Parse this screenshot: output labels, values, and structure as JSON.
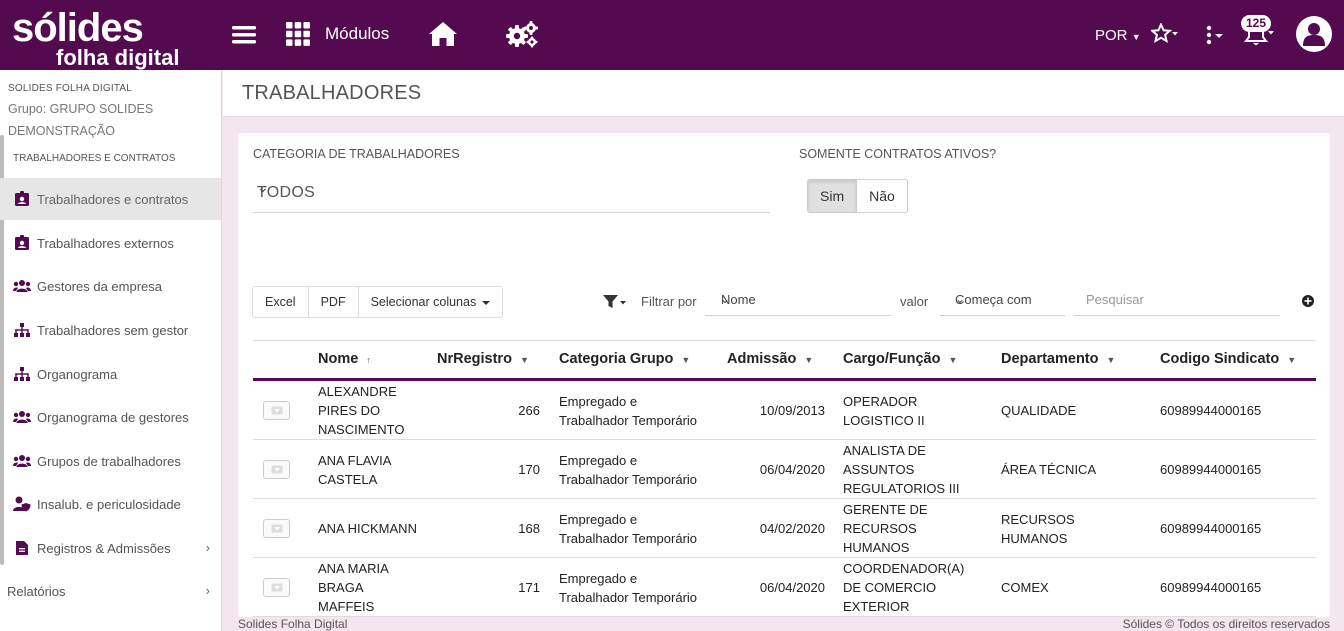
{
  "topbar": {
    "logo_line1": "sólides",
    "logo_line2": "folha digital",
    "modules_label": "Módulos",
    "language": "POR",
    "notifications_count": "125",
    "icons": [
      "menu-icon",
      "grid-icon",
      "home-icon",
      "gears-icon",
      "star-icon",
      "more-vert-icon",
      "bell-icon",
      "user-avatar-icon"
    ]
  },
  "sidebar": {
    "company": "SOLIDES FOLHA DIGITAL",
    "group": "Grupo: GRUPO SOLIDES DEMONSTRAÇÃO",
    "section": "TRABALHADORES E CONTRATOS",
    "items": [
      {
        "label": "Trabalhadores e contratos",
        "icon": "id-badge-icon"
      },
      {
        "label": "Trabalhadores externos",
        "icon": "id-badge-icon"
      },
      {
        "label": "Gestores da empresa",
        "icon": "users-icon"
      },
      {
        "label": "Trabalhadores sem gestor",
        "icon": "sitemap-icon"
      },
      {
        "label": "Organograma",
        "icon": "sitemap-icon"
      },
      {
        "label": "Organograma de gestores",
        "icon": "users-icon"
      },
      {
        "label": "Grupos de trabalhadores",
        "icon": "users-icon"
      },
      {
        "label": "Insalub. e periculosidade",
        "icon": "user-shield-icon"
      },
      {
        "label": "Registros & Admissões",
        "icon": "file-icon"
      }
    ],
    "reports": "Relatórios"
  },
  "page": {
    "title": "TRABALHADORES"
  },
  "filters": {
    "category_label": "CATEGORIA DE TRABALHADORES",
    "category_value": "TODOS",
    "active_label": "SOMENTE CONTRATOS ATIVOS?",
    "yes": "Sim",
    "no": "Não",
    "active_selected": "Sim"
  },
  "toolbar": {
    "excel": "Excel",
    "pdf": "PDF",
    "columns": "Selecionar colunas",
    "filter_by": "Filtrar por",
    "field": "Nome",
    "value_label": "valor",
    "operator": "Começa com",
    "search_placeholder": "Pesquisar"
  },
  "table": {
    "columns": [
      "Nome",
      "NrRegistro",
      "Categoria Grupo",
      "Admissão",
      "Cargo/Função",
      "Departamento",
      "Codigo Sindicato"
    ],
    "rows": [
      {
        "nome": [
          "ALEXANDRE",
          "PIRES DO",
          "NASCIMENTO"
        ],
        "registro": "266",
        "categoria": [
          "Empregado e",
          "Trabalhador Temporário"
        ],
        "admissao": "10/09/2013",
        "cargo": [
          "OPERADOR",
          "LOGISTICO II"
        ],
        "departamento": [
          "QUALIDADE"
        ],
        "sindicato": "60989944000165"
      },
      {
        "nome": [
          "ANA FLAVIA",
          "CASTELA"
        ],
        "registro": "170",
        "categoria": [
          "Empregado e",
          "Trabalhador Temporário"
        ],
        "admissao": "06/04/2020",
        "cargo": [
          "ANALISTA DE",
          "ASSUNTOS",
          "REGULATORIOS III"
        ],
        "departamento": [
          "ÁREA TÉCNICA"
        ],
        "sindicato": "60989944000165"
      },
      {
        "nome": [
          "ANA HICKMANN"
        ],
        "registro": "168",
        "categoria": [
          "Empregado e",
          "Trabalhador Temporário"
        ],
        "admissao": "04/02/2020",
        "cargo": [
          "GERENTE DE",
          "RECURSOS",
          "HUMANOS"
        ],
        "departamento": [
          "RECURSOS",
          "HUMANOS"
        ],
        "sindicato": "60989944000165"
      },
      {
        "nome": [
          "ANA MARIA",
          "BRAGA",
          "MAFFEIS"
        ],
        "registro": "171",
        "categoria": [
          "Empregado e",
          "Trabalhador Temporário"
        ],
        "admissao": "06/04/2020",
        "cargo": [
          "COORDENADOR(A)",
          "DE COMERCIO",
          "EXTERIOR"
        ],
        "departamento": [
          "COMEX"
        ],
        "sindicato": "60989944000165"
      }
    ]
  },
  "footer": {
    "left": "Solides Folha Digital",
    "right": "Sólides © Todos os direitos reservados"
  }
}
